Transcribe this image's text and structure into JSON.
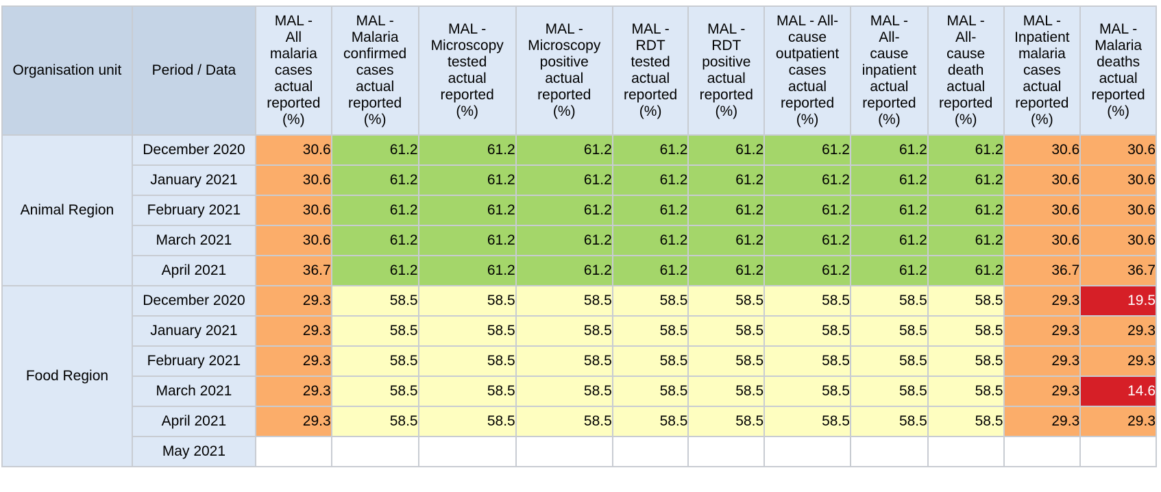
{
  "header": {
    "org_unit": "Organisation unit",
    "period_data": "Period / Data",
    "columns": [
      [
        "MAL -",
        "All",
        "malaria",
        "cases",
        "actual",
        "reported",
        "(%)"
      ],
      [
        "MAL -",
        "Malaria",
        "confirmed",
        "cases",
        "actual",
        "reported",
        "(%)"
      ],
      [
        "MAL -",
        "Microscopy",
        "tested",
        "actual",
        "reported",
        "(%)"
      ],
      [
        "MAL -",
        "Microscopy",
        "positive",
        "actual",
        "reported",
        "(%)"
      ],
      [
        "MAL -",
        "RDT",
        "tested",
        "actual",
        "reported",
        "(%)"
      ],
      [
        "MAL -",
        "RDT",
        "positive",
        "actual",
        "reported",
        "(%)"
      ],
      [
        "MAL - All-",
        "cause",
        "outpatient",
        "cases",
        "actual",
        "reported",
        "(%)"
      ],
      [
        "MAL -",
        "All-",
        "cause",
        "inpatient",
        "actual",
        "reported",
        "(%)"
      ],
      [
        "MAL -",
        "All-",
        "cause",
        "death",
        "actual",
        "reported",
        "(%)"
      ],
      [
        "MAL -",
        "Inpatient",
        "malaria",
        "cases",
        "actual",
        "reported",
        "(%)"
      ],
      [
        "MAL -",
        "Malaria",
        "deaths",
        "actual",
        "reported",
        "(%)"
      ]
    ]
  },
  "colors": {
    "orange": "#fbad6a",
    "green": "#a4d66a",
    "yellow": "#fefec0",
    "red": "#d61f27",
    "header_bg": "#dde8f6",
    "corner_bg": "#c5d4e6"
  },
  "regions": [
    {
      "name": "Animal Region",
      "rows": [
        {
          "period": "December 2020",
          "values": [
            "30.6",
            "61.2",
            "61.2",
            "61.2",
            "61.2",
            "61.2",
            "61.2",
            "61.2",
            "61.2",
            "30.6",
            "30.6"
          ],
          "colors": [
            "orange",
            "green",
            "green",
            "green",
            "green",
            "green",
            "green",
            "green",
            "green",
            "orange",
            "orange"
          ]
        },
        {
          "period": "January 2021",
          "values": [
            "30.6",
            "61.2",
            "61.2",
            "61.2",
            "61.2",
            "61.2",
            "61.2",
            "61.2",
            "61.2",
            "30.6",
            "30.6"
          ],
          "colors": [
            "orange",
            "green",
            "green",
            "green",
            "green",
            "green",
            "green",
            "green",
            "green",
            "orange",
            "orange"
          ]
        },
        {
          "period": "February 2021",
          "values": [
            "30.6",
            "61.2",
            "61.2",
            "61.2",
            "61.2",
            "61.2",
            "61.2",
            "61.2",
            "61.2",
            "30.6",
            "30.6"
          ],
          "colors": [
            "orange",
            "green",
            "green",
            "green",
            "green",
            "green",
            "green",
            "green",
            "green",
            "orange",
            "orange"
          ]
        },
        {
          "period": "March 2021",
          "values": [
            "30.6",
            "61.2",
            "61.2",
            "61.2",
            "61.2",
            "61.2",
            "61.2",
            "61.2",
            "61.2",
            "30.6",
            "30.6"
          ],
          "colors": [
            "orange",
            "green",
            "green",
            "green",
            "green",
            "green",
            "green",
            "green",
            "green",
            "orange",
            "orange"
          ]
        },
        {
          "period": "April 2021",
          "values": [
            "36.7",
            "61.2",
            "61.2",
            "61.2",
            "61.2",
            "61.2",
            "61.2",
            "61.2",
            "61.2",
            "36.7",
            "36.7"
          ],
          "colors": [
            "orange",
            "green",
            "green",
            "green",
            "green",
            "green",
            "green",
            "green",
            "green",
            "orange",
            "orange"
          ]
        }
      ]
    },
    {
      "name": "Food Region",
      "rows": [
        {
          "period": "December 2020",
          "values": [
            "29.3",
            "58.5",
            "58.5",
            "58.5",
            "58.5",
            "58.5",
            "58.5",
            "58.5",
            "58.5",
            "29.3",
            "19.5"
          ],
          "colors": [
            "orange",
            "yellow",
            "yellow",
            "yellow",
            "yellow",
            "yellow",
            "yellow",
            "yellow",
            "yellow",
            "orange",
            "red"
          ]
        },
        {
          "period": "January 2021",
          "values": [
            "29.3",
            "58.5",
            "58.5",
            "58.5",
            "58.5",
            "58.5",
            "58.5",
            "58.5",
            "58.5",
            "29.3",
            "29.3"
          ],
          "colors": [
            "orange",
            "yellow",
            "yellow",
            "yellow",
            "yellow",
            "yellow",
            "yellow",
            "yellow",
            "yellow",
            "orange",
            "orange"
          ]
        },
        {
          "period": "February 2021",
          "values": [
            "29.3",
            "58.5",
            "58.5",
            "58.5",
            "58.5",
            "58.5",
            "58.5",
            "58.5",
            "58.5",
            "29.3",
            "29.3"
          ],
          "colors": [
            "orange",
            "yellow",
            "yellow",
            "yellow",
            "yellow",
            "yellow",
            "yellow",
            "yellow",
            "yellow",
            "orange",
            "orange"
          ]
        },
        {
          "period": "March 2021",
          "values": [
            "29.3",
            "58.5",
            "58.5",
            "58.5",
            "58.5",
            "58.5",
            "58.5",
            "58.5",
            "58.5",
            "29.3",
            "14.6"
          ],
          "colors": [
            "orange",
            "yellow",
            "yellow",
            "yellow",
            "yellow",
            "yellow",
            "yellow",
            "yellow",
            "yellow",
            "orange",
            "red"
          ]
        },
        {
          "period": "April 2021",
          "values": [
            "29.3",
            "58.5",
            "58.5",
            "58.5",
            "58.5",
            "58.5",
            "58.5",
            "58.5",
            "58.5",
            "29.3",
            "29.3"
          ],
          "colors": [
            "orange",
            "yellow",
            "yellow",
            "yellow",
            "yellow",
            "yellow",
            "yellow",
            "yellow",
            "yellow",
            "orange",
            "orange"
          ]
        },
        {
          "period": "May 2021",
          "values": [
            "",
            "",
            "",
            "",
            "",
            "",
            "",
            "",
            "",
            "",
            ""
          ],
          "colors": [
            "empty",
            "empty",
            "empty",
            "empty",
            "empty",
            "empty",
            "empty",
            "empty",
            "empty",
            "empty",
            "empty"
          ]
        }
      ]
    }
  ]
}
